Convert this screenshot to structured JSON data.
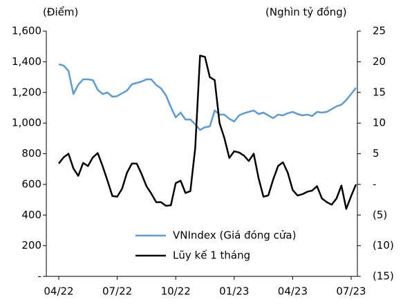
{
  "chart_data": {
    "type": "line",
    "y_label": "(Điểm)",
    "y2_label": "(Nghìn tỷ đồng)",
    "categories": [
      "04/22",
      null,
      null,
      null,
      null,
      null,
      null,
      null,
      null,
      null,
      null,
      null,
      "07/22",
      null,
      null,
      null,
      null,
      null,
      null,
      null,
      null,
      null,
      null,
      null,
      "10/22",
      null,
      null,
      null,
      null,
      null,
      null,
      null,
      null,
      null,
      null,
      null,
      "01/23",
      null,
      null,
      null,
      null,
      null,
      null,
      null,
      null,
      null,
      null,
      null,
      "04/23",
      null,
      null,
      null,
      null,
      null,
      null,
      null,
      null,
      null,
      null,
      null,
      "07/23",
      null
    ],
    "series": [
      {
        "name": "VNIndex (Giá đóng cửa)",
        "color": "#5b9bd5",
        "axis": "y",
        "values": [
          1383,
          1375,
          1340,
          1190,
          1250,
          1285,
          1285,
          1280,
          1217,
          1190,
          1199,
          1172,
          1176,
          1194,
          1212,
          1253,
          1262,
          1271,
          1285,
          1285,
          1248,
          1226,
          1181,
          1104,
          1037,
          1068,
          1023,
          1023,
          992,
          955,
          973,
          978,
          1082,
          1055,
          1055,
          1028,
          1010,
          1050,
          1064,
          1073,
          1082,
          1059,
          1068,
          1050,
          1032,
          1055,
          1050,
          1064,
          1073,
          1059,
          1050,
          1055,
          1046,
          1073,
          1068,
          1073,
          1091,
          1109,
          1120,
          1150,
          1190,
          1230
        ]
      },
      {
        "name": "Lũy kế 1 tháng",
        "color": "#000000",
        "axis": "y2",
        "values": [
          3.4,
          4.4,
          5,
          2.6,
          1.4,
          3.5,
          3,
          4.4,
          5.1,
          3,
          0.6,
          -1.9,
          -2,
          -0.7,
          1.9,
          3.4,
          3.4,
          1.7,
          -0.3,
          -1.5,
          -2.9,
          -2.9,
          -3.5,
          -3.4,
          0.2,
          0.6,
          -1.4,
          -1.1,
          5.9,
          21,
          20.8,
          17.5,
          17,
          10,
          7.5,
          4.3,
          5.4,
          5.2,
          4.7,
          3.8,
          5,
          1,
          -2,
          -1.8,
          0.8,
          3,
          3.6,
          1.9,
          -0.9,
          -1.8,
          -1.6,
          -1.2,
          -1,
          -0.3,
          -2.3,
          -2.9,
          -3.3,
          -2.3,
          -0.2,
          -4,
          -1.9,
          0
        ]
      }
    ],
    "ylim": [
      0,
      1600
    ],
    "yticks": [
      {
        "value": 0,
        "label": "-"
      },
      200,
      400,
      600,
      800,
      {
        "value": 1000,
        "label": "1,000"
      },
      {
        "value": 1200,
        "label": "1,200"
      },
      {
        "value": 1400,
        "label": "1,400"
      },
      {
        "value": 1600,
        "label": "1,600"
      }
    ],
    "y2lim": [
      -15,
      25
    ],
    "y2ticks": [
      {
        "value": -15,
        "label": "(15)"
      },
      {
        "value": -10,
        "label": "(10)"
      },
      {
        "value": -5,
        "label": "(5)"
      },
      {
        "value": 0,
        "label": "-"
      },
      5,
      10,
      15,
      20,
      25
    ],
    "grid": false
  }
}
